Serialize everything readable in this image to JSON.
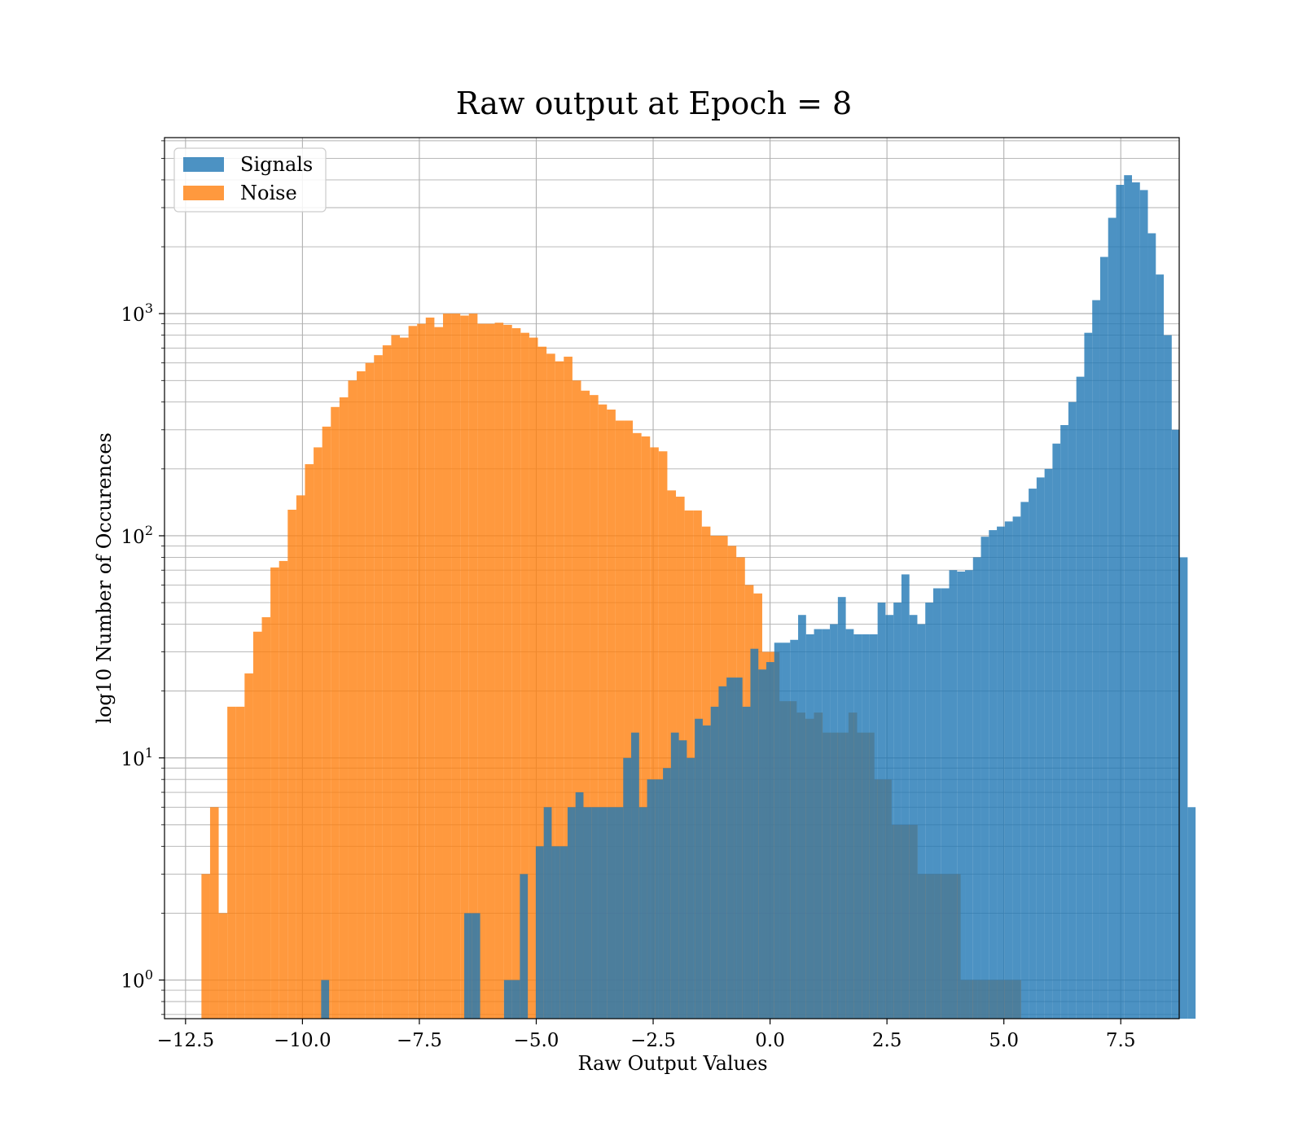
{
  "chart_data": {
    "type": "histogram",
    "title": "Raw output at Epoch = 8",
    "xlabel": "Raw Output Values",
    "ylabel": "log10 Number of Occurences",
    "xlim": [
      -12.95,
      8.75
    ],
    "ylim": [
      0.67,
      6200
    ],
    "yscale": "log",
    "grid": true,
    "legend_position": "upper-left",
    "x_ticks": [
      -12.5,
      -10.0,
      -7.5,
      -5.0,
      -2.5,
      0.0,
      2.5,
      5.0,
      7.5
    ],
    "x_tick_labels": [
      "−12.5",
      "−10.0",
      "−7.5",
      "−5.0",
      "−2.5",
      "0.0",
      "2.5",
      "5.0",
      "7.5"
    ],
    "y_ticks": [
      {
        "value": 1,
        "base": "10",
        "exp": "0"
      },
      {
        "value": 10,
        "base": "10",
        "exp": "1"
      },
      {
        "value": 100,
        "base": "10",
        "exp": "2"
      },
      {
        "value": 1000,
        "base": "10",
        "exp": "3"
      }
    ],
    "series": [
      {
        "name": "Signals",
        "color": "#1f77b4",
        "bin_start": -9.6,
        "bin_width": 0.17,
        "counts": [
          1,
          0,
          0,
          0,
          0,
          0,
          0,
          0,
          0,
          0,
          0,
          0,
          0,
          0,
          0,
          0,
          0,
          0,
          2,
          2,
          0,
          0,
          0,
          1,
          1,
          3,
          0,
          4,
          6,
          4,
          4,
          6,
          7,
          6,
          6,
          6,
          6,
          6,
          10,
          13,
          6,
          8,
          8,
          9,
          13,
          12,
          10,
          15,
          14,
          17,
          21,
          23,
          23,
          17,
          31,
          25,
          27,
          33,
          33,
          34,
          44,
          36,
          38,
          38,
          40,
          53,
          38,
          36,
          36,
          36,
          50,
          44,
          50,
          67,
          44,
          40,
          50,
          58,
          58,
          70,
          69,
          70,
          80,
          99,
          106,
          110,
          116,
          122,
          142,
          163,
          183,
          200,
          260,
          315,
          400,
          520,
          820,
          1150,
          1800,
          2700,
          3800,
          4200,
          3900,
          3600,
          2300,
          1500,
          800,
          300,
          80,
          6
        ]
      },
      {
        "name": "Noise",
        "color": "#ff7f0e",
        "bin_start": -12.16,
        "bin_width": 0.1845,
        "counts": [
          3,
          6,
          2,
          17,
          17,
          24,
          37,
          43,
          72,
          77,
          131,
          152,
          210,
          250,
          310,
          380,
          420,
          500,
          550,
          600,
          650,
          720,
          800,
          780,
          880,
          900,
          960,
          870,
          1000,
          1000,
          980,
          1000,
          900,
          900,
          910,
          890,
          860,
          820,
          780,
          710,
          660,
          610,
          640,
          500,
          450,
          430,
          390,
          370,
          330,
          330,
          290,
          280,
          250,
          240,
          160,
          150,
          130,
          130,
          110,
          100,
          100,
          90,
          80,
          60,
          55,
          30,
          30,
          18,
          18,
          16,
          15,
          16,
          13,
          13,
          13,
          16,
          13,
          13,
          8,
          8,
          5,
          5,
          5,
          3,
          3,
          3,
          3,
          3,
          1,
          1,
          1,
          1,
          1,
          1,
          1
        ]
      }
    ]
  }
}
